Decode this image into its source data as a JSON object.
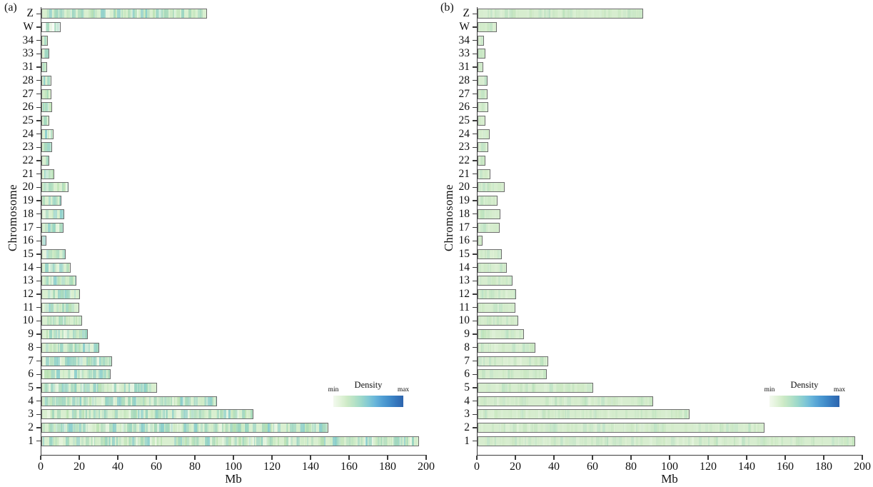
{
  "figure": {
    "background": "#ffffff",
    "text_color": "#111111",
    "axis_color": "#3c3c3c",
    "bar_border_color": "#6e6e6e"
  },
  "chart_data": [
    {
      "type": "bar",
      "orientation": "horizontal",
      "panel_label": "(a)",
      "xlabel": "Mb",
      "ylabel": "Chromosome",
      "xlim": [
        0,
        200
      ],
      "xticks": [
        0,
        20,
        40,
        60,
        80,
        100,
        120,
        140,
        160,
        180,
        200
      ],
      "categories": [
        "Z",
        "W",
        "34",
        "33",
        "31",
        "28",
        "27",
        "26",
        "25",
        "24",
        "23",
        "22",
        "21",
        "20",
        "19",
        "18",
        "17",
        "16",
        "15",
        "14",
        "13",
        "12",
        "11",
        "10",
        "9",
        "8",
        "7",
        "6",
        "5",
        "4",
        "3",
        "2",
        "1"
      ],
      "values": [
        86,
        10,
        3.5,
        4,
        3,
        5,
        5,
        5.5,
        4,
        6.2,
        5.5,
        4,
        6.8,
        14,
        10.5,
        12,
        11.5,
        2.5,
        12.5,
        15,
        18,
        20,
        19.5,
        21,
        24,
        30,
        36.5,
        36,
        60,
        91,
        110,
        149,
        196
      ],
      "bar_base": "#d9efd0",
      "base_overrides": {
        "W": "#f7fbf5",
        "16": "#eef7ec"
      },
      "stripe_palette": [
        "#b7e0b0",
        "#a3d8ba",
        "#93d2c2",
        "#86ccce",
        "#c9e9c2",
        "#9ed6c6",
        "#ecf7e6"
      ],
      "stripe_opacity": [
        0.3,
        0.85
      ],
      "stripe_step": 2.6,
      "stripe_seed": 20240601,
      "hotspots": [
        {
          "chr": "6",
          "mb": 4.5,
          "width_mb": 3,
          "color": "#3e97d1"
        }
      ],
      "legend": {
        "title": "Density",
        "min_label": "min",
        "max_label": "max",
        "colors": [
          "#f3f9ee",
          "#e2f3da",
          "#cdeac6",
          "#b6e2c6",
          "#9cd8ca",
          "#82c9d4",
          "#68b5da",
          "#519fd4",
          "#418cca",
          "#3577bd",
          "#2d64ad"
        ]
      }
    },
    {
      "type": "bar",
      "orientation": "horizontal",
      "panel_label": "(b)",
      "xlabel": "Mb",
      "ylabel": "Chromosome",
      "xlim": [
        0,
        200
      ],
      "xticks": [
        0,
        20,
        40,
        60,
        80,
        100,
        120,
        140,
        160,
        180,
        200
      ],
      "categories": [
        "Z",
        "W",
        "34",
        "33",
        "31",
        "28",
        "27",
        "26",
        "25",
        "24",
        "23",
        "22",
        "21",
        "20",
        "19",
        "18",
        "17",
        "16",
        "15",
        "14",
        "13",
        "12",
        "11",
        "10",
        "9",
        "8",
        "7",
        "6",
        "5",
        "4",
        "3",
        "2",
        "1"
      ],
      "values": [
        86,
        10,
        3.5,
        4,
        3,
        5,
        5,
        5.5,
        4,
        6.2,
        5.5,
        4,
        6.8,
        14,
        10.5,
        12,
        11.5,
        2.5,
        12.5,
        15,
        18,
        20,
        19.5,
        21,
        24,
        30,
        36.5,
        36,
        60,
        91,
        110,
        149,
        196
      ],
      "bar_base": "#d7edcf",
      "base_overrides": {},
      "stripe_palette": [
        "#c3e5ba",
        "#b4dfb6",
        "#a6d9c0",
        "#cdeac4",
        "#e9f6e2"
      ],
      "stripe_opacity": [
        0.12,
        0.4
      ],
      "stripe_step": 3.2,
      "stripe_seed": 987654,
      "hotspots": [
        {
          "chr": "4",
          "mb": 90.3,
          "width_mb": 0.8,
          "color": "#5ea9d6"
        },
        {
          "chr": "2",
          "mb": 148.2,
          "width_mb": 0.8,
          "color": "#7fc0dc"
        },
        {
          "chr": "1",
          "mb": 194,
          "width_mb": 0.7,
          "color": "#92cfc2"
        },
        {
          "chr": "1",
          "mb": 0.6,
          "width_mb": 0.7,
          "color": "#a5d9cf"
        }
      ],
      "legend": {
        "title": "Density",
        "min_label": "min",
        "max_label": "max",
        "colors": [
          "#f3f9ee",
          "#e2f3da",
          "#cdeac6",
          "#b6e2c6",
          "#9cd8ca",
          "#82c9d4",
          "#68b5da",
          "#519fd4",
          "#418cca",
          "#3577bd",
          "#2d64ad"
        ]
      }
    }
  ]
}
